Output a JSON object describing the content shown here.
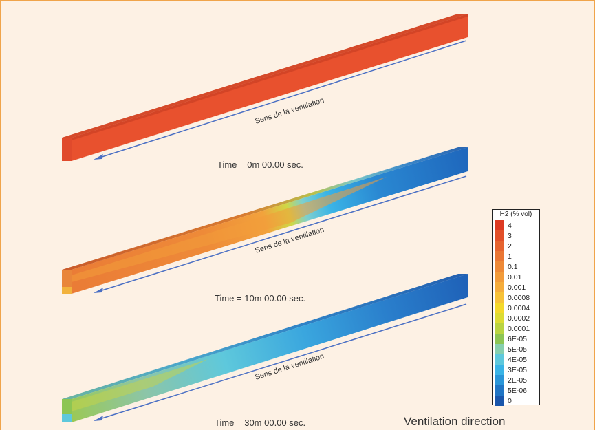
{
  "panels": [
    {
      "time_label": "Time = 0m 00.00 sec.",
      "arrow_label": "Sens de la ventilation"
    },
    {
      "time_label": "Time = 10m 00.00 sec.",
      "arrow_label": "Sens de la ventilation"
    },
    {
      "time_label": "Time = 30m 00.00 sec.",
      "arrow_label": "Sens de la ventilation"
    }
  ],
  "legend": {
    "title": "H2 (% vol)",
    "items": [
      {
        "label": "4",
        "color": "#dd3a23"
      },
      {
        "label": "3",
        "color": "#e2502a"
      },
      {
        "label": "2",
        "color": "#e66430"
      },
      {
        "label": "1",
        "color": "#ea7735"
      },
      {
        "label": "0.1",
        "color": "#ee8a38"
      },
      {
        "label": "0.01",
        "color": "#f29c3b"
      },
      {
        "label": "0.001",
        "color": "#f5ad3c"
      },
      {
        "label": "0.0008",
        "color": "#f7c238"
      },
      {
        "label": "0.0004",
        "color": "#f4d92b"
      },
      {
        "label": "0.0002",
        "color": "#dcdc34"
      },
      {
        "label": "0.0001",
        "color": "#b9d442"
      },
      {
        "label": "6E-05",
        "color": "#8cc554"
      },
      {
        "label": "5E-05",
        "color": "#86cfae"
      },
      {
        "label": "4E-05",
        "color": "#5ec8dc"
      },
      {
        "label": "3E-05",
        "color": "#3ab4e6"
      },
      {
        "label": "2E-05",
        "color": "#2a96d8"
      },
      {
        "label": "5E-06",
        "color": "#2075c4"
      },
      {
        "label": "0",
        "color": "#1a56ab"
      }
    ]
  },
  "ventilation_direction_label": "Ventilation direction",
  "colors": {
    "frame_border": "#f0a44a",
    "background": "#fdf1e4",
    "arrow": "#4a6fc4"
  }
}
